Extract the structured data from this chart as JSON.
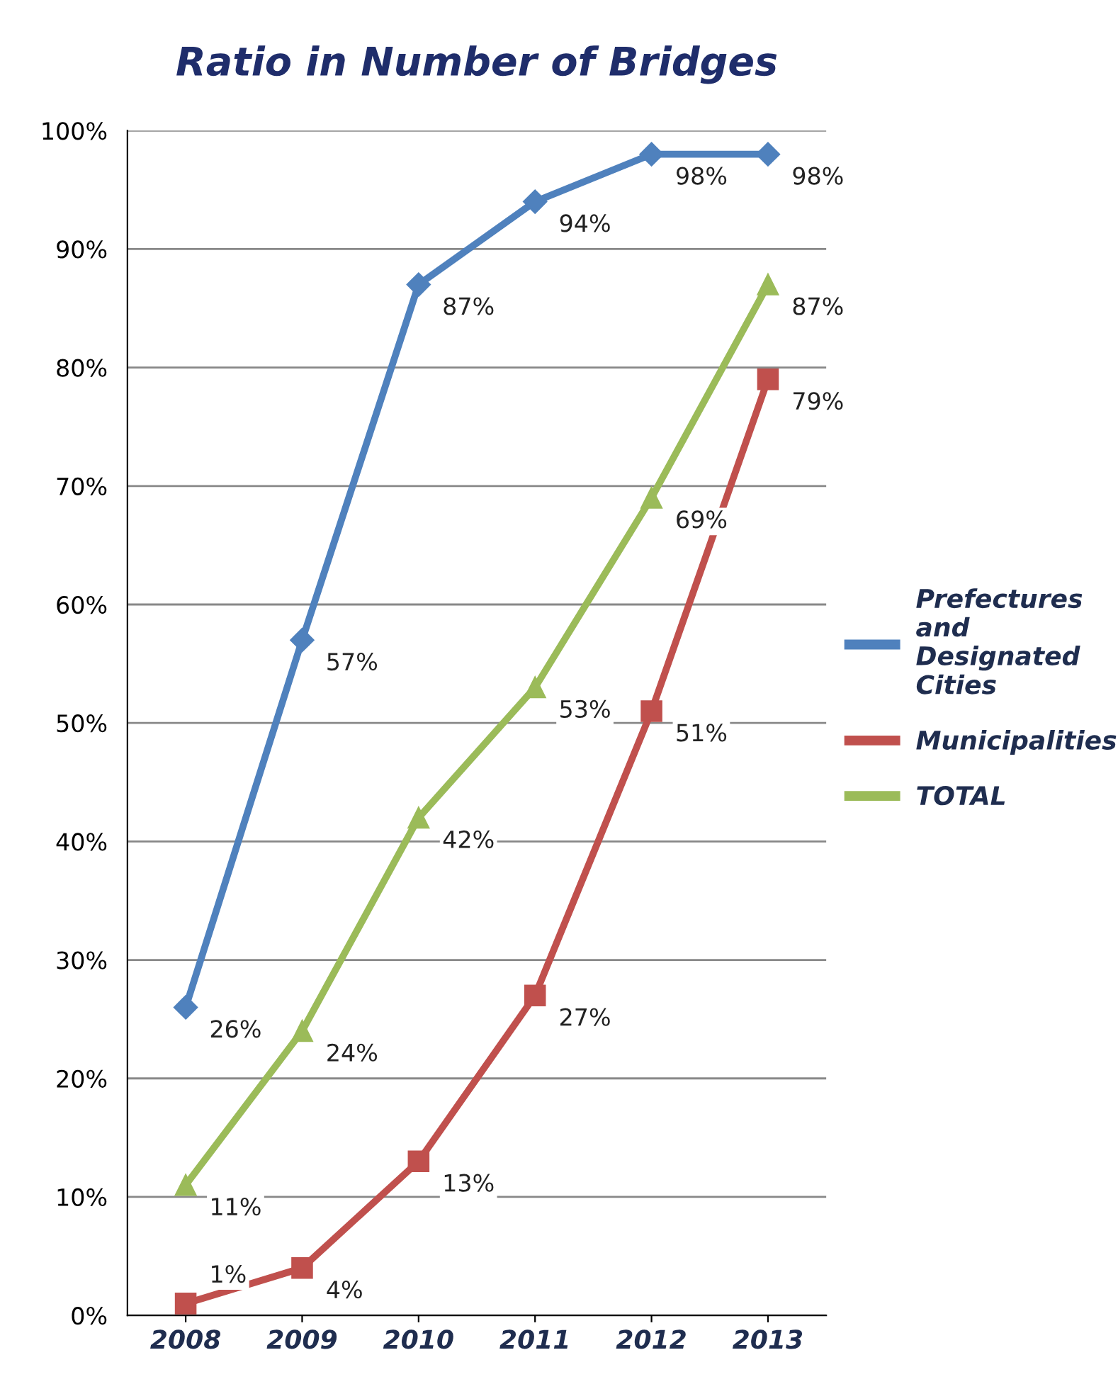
{
  "chart_data": {
    "type": "line",
    "title": "Ratio in Number of Bridges",
    "categories": [
      "2008",
      "2009",
      "2010",
      "2011",
      "2012",
      "2013"
    ],
    "series": [
      {
        "name": "Prefectures and Designated Cities",
        "color": "#4f81bd",
        "marker": "diamond",
        "values": [
          26,
          57,
          87,
          94,
          98,
          98
        ],
        "value_labels": [
          "26%",
          "57%",
          "87%",
          "94%",
          "98%",
          "98%"
        ]
      },
      {
        "name": "Municipalities",
        "color": "#c0504d",
        "marker": "square",
        "values": [
          1,
          4,
          13,
          27,
          51,
          79
        ],
        "value_labels": [
          "1%",
          "4%",
          "13%",
          "27%",
          "51%",
          "79%"
        ]
      },
      {
        "name": "TOTAL",
        "color": "#9bbb59",
        "marker": "triangle",
        "values": [
          11,
          24,
          42,
          53,
          69,
          87
        ],
        "value_labels": [
          "11%",
          "24%",
          "42%",
          "53%",
          "69%",
          "87%"
        ]
      }
    ],
    "ylim": [
      0,
      100
    ],
    "yticks": [
      {
        "value": 0,
        "label": "0%"
      },
      {
        "value": 10,
        "label": "10%"
      },
      {
        "value": 20,
        "label": "20%"
      },
      {
        "value": 30,
        "label": "30%"
      },
      {
        "value": 40,
        "label": "40%"
      },
      {
        "value": 50,
        "label": "50%"
      },
      {
        "value": 60,
        "label": "60%"
      },
      {
        "value": 70,
        "label": "70%"
      },
      {
        "value": 80,
        "label": "80%"
      },
      {
        "value": 90,
        "label": "90%"
      },
      {
        "value": 100,
        "label": "100%"
      }
    ],
    "grid": "y",
    "legend": "right",
    "line_style": "solid"
  }
}
